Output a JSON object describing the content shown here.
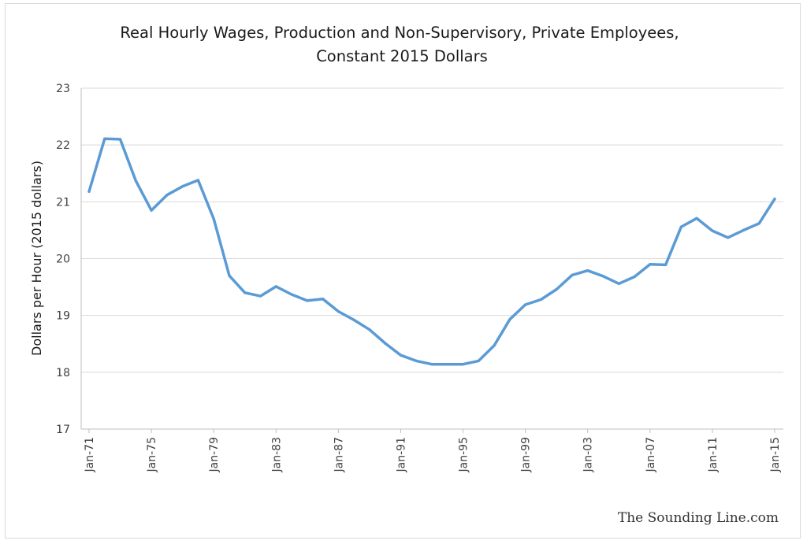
{
  "chart_data": {
    "type": "line",
    "title_line1": "Real Hourly Wages, Production and Non-Supervisory, Private Employees,",
    "title_line2": "Constant 2015 Dollars",
    "ylabel": "Dollars per Hour (2015 dollars)",
    "xlabel": "",
    "ylim": [
      17,
      23
    ],
    "yticks": [
      "17",
      "18",
      "19",
      "20",
      "21",
      "22",
      "23"
    ],
    "grid": "horizontal",
    "legend": "none",
    "line_color": "#5b9bd5",
    "x_tick_labels": [
      "Jan-71",
      "Jan-75",
      "Jan-79",
      "Jan-83",
      "Jan-87",
      "Jan-91",
      "Jan-95",
      "Jan-99",
      "Jan-03",
      "Jan-07",
      "Jan-11",
      "Jan-15"
    ],
    "x_tick_indices": [
      0,
      4,
      8,
      12,
      16,
      20,
      24,
      28,
      32,
      36,
      40,
      44
    ],
    "x": [
      "Jan-71",
      "Jan-72",
      "Jan-73",
      "Jan-74",
      "Jan-75",
      "Jan-76",
      "Jan-77",
      "Jan-78",
      "Jan-79",
      "Jan-80",
      "Jan-81",
      "Jan-82",
      "Jan-83",
      "Jan-84",
      "Jan-85",
      "Jan-86",
      "Jan-87",
      "Jan-88",
      "Jan-89",
      "Jan-90",
      "Jan-91",
      "Jan-92",
      "Jan-93",
      "Jan-94",
      "Jan-95",
      "Jan-96",
      "Jan-97",
      "Jan-98",
      "Jan-99",
      "Jan-00",
      "Jan-01",
      "Jan-02",
      "Jan-03",
      "Jan-04",
      "Jan-05",
      "Jan-06",
      "Jan-07",
      "Jan-08",
      "Jan-09",
      "Jan-10",
      "Jan-11",
      "Jan-12",
      "Jan-13",
      "Jan-14",
      "Jan-15"
    ],
    "series": [
      {
        "values": [
          21.18,
          22.11,
          22.1,
          21.37,
          20.85,
          21.12,
          21.27,
          21.38,
          20.7,
          19.7,
          19.4,
          19.34,
          19.51,
          19.37,
          19.26,
          19.29,
          19.07,
          18.92,
          18.75,
          18.51,
          18.3,
          18.2,
          18.14,
          18.14,
          18.14,
          18.2,
          18.47,
          18.93,
          19.19,
          19.28,
          19.46,
          19.71,
          19.79,
          19.69,
          19.56,
          19.68,
          19.9,
          19.89,
          20.56,
          20.71,
          20.49,
          20.37,
          20.5,
          20.62,
          21.05
        ]
      }
    ]
  },
  "watermark": "The Sounding Line.com"
}
